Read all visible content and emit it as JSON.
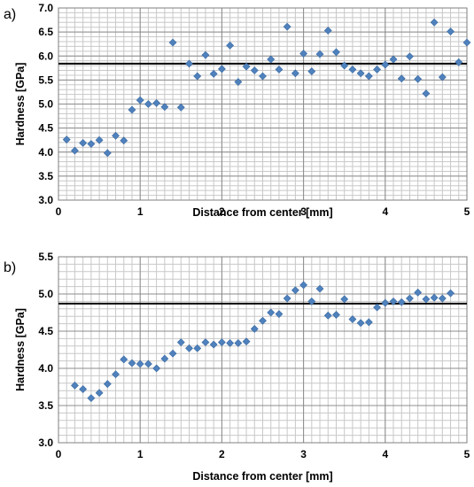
{
  "chart_data": [
    {
      "type": "scatter",
      "panel_label": "a)",
      "xlabel": "Distance from center [mm]",
      "ylabel": "Hardness [GPa]",
      "xlim": [
        0,
        5
      ],
      "ylim": [
        3.0,
        7.0
      ],
      "x_ticks": [
        "0",
        "1",
        "2",
        "3",
        "4",
        "5"
      ],
      "y_ticks": [
        "3.0",
        "3.5",
        "4.0",
        "4.5",
        "5.0",
        "5.5",
        "6.0",
        "6.5",
        "7.0"
      ],
      "grid": true,
      "marker": "diamond",
      "marker_color": "#4f81bd",
      "reference_line_y": 5.84,
      "series": [
        {
          "x": [
            0.1,
            0.2,
            0.3,
            0.4,
            0.5,
            0.6,
            0.7,
            0.8,
            0.9,
            1.0,
            1.1,
            1.2,
            1.3,
            1.4,
            1.5,
            1.6,
            1.7,
            1.8,
            1.9,
            2.0,
            2.1,
            2.2,
            2.3,
            2.4,
            2.5,
            2.6,
            2.7,
            2.8,
            2.9,
            3.0,
            3.1,
            3.2,
            3.3,
            3.4,
            3.5,
            3.6,
            3.7,
            3.8,
            3.9,
            4.0,
            4.1,
            4.2,
            4.3,
            4.4,
            4.5,
            4.6,
            4.7,
            4.8,
            4.9,
            5.0
          ],
          "y": [
            4.26,
            4.03,
            4.19,
            4.17,
            4.25,
            3.98,
            4.34,
            4.24,
            4.88,
            5.08,
            5.0,
            5.02,
            4.94,
            6.28,
            4.93,
            5.84,
            5.58,
            6.02,
            5.63,
            5.73,
            6.22,
            5.46,
            5.78,
            5.7,
            5.58,
            5.93,
            5.72,
            6.61,
            5.64,
            6.05,
            5.68,
            6.04,
            6.53,
            6.08,
            5.8,
            5.72,
            5.64,
            5.58,
            5.72,
            5.82,
            5.93,
            5.53,
            5.99,
            5.52,
            5.22,
            6.7,
            5.56,
            6.51,
            5.87,
            6.28
          ]
        }
      ]
    },
    {
      "type": "scatter",
      "panel_label": "b)",
      "xlabel": "Distance from center [mm]",
      "ylabel": "Hardness [GPa]",
      "xlim": [
        0,
        5
      ],
      "ylim": [
        3.0,
        5.5
      ],
      "x_ticks": [
        "0",
        "1",
        "2",
        "3",
        "4",
        "5"
      ],
      "y_ticks": [
        "3.0",
        "3.5",
        "4.0",
        "4.5",
        "5.0",
        "5.5"
      ],
      "grid": true,
      "marker": "diamond",
      "marker_color": "#4f81bd",
      "reference_line_y": 4.87,
      "series": [
        {
          "x": [
            0.2,
            0.3,
            0.4,
            0.5,
            0.6,
            0.7,
            0.8,
            0.9,
            1.0,
            1.1,
            1.2,
            1.3,
            1.4,
            1.5,
            1.6,
            1.7,
            1.8,
            1.9,
            2.0,
            2.1,
            2.2,
            2.3,
            2.4,
            2.5,
            2.6,
            2.7,
            2.8,
            2.9,
            3.0,
            3.1,
            3.2,
            3.3,
            3.4,
            3.5,
            3.6,
            3.7,
            3.8,
            3.9,
            4.0,
            4.1,
            4.2,
            4.3,
            4.4,
            4.5,
            4.6,
            4.7,
            4.8
          ],
          "y": [
            3.77,
            3.72,
            3.6,
            3.67,
            3.79,
            3.92,
            4.12,
            4.07,
            4.06,
            4.06,
            4.0,
            4.13,
            4.2,
            4.35,
            4.27,
            4.27,
            4.35,
            4.32,
            4.35,
            4.34,
            4.34,
            4.36,
            4.53,
            4.64,
            4.75,
            4.73,
            4.94,
            5.05,
            5.12,
            4.9,
            5.07,
            4.71,
            4.72,
            4.93,
            4.66,
            4.61,
            4.62,
            4.82,
            4.88,
            4.9,
            4.89,
            4.94,
            5.02,
            4.93,
            4.95,
            4.94,
            5.01
          ]
        }
      ]
    }
  ]
}
